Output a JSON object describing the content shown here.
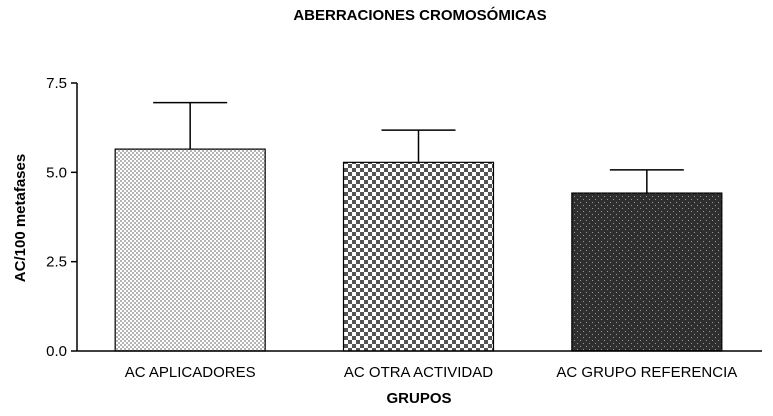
{
  "chart_data": {
    "type": "bar",
    "title": "ABERRACIONES CROMOSÓMICAS",
    "xlabel": "GRUPOS",
    "ylabel": "AC/100 metafases",
    "categories": [
      "AC APLICADORES",
      "AC OTRA ACTIVIDAD",
      "AC GRUPO REFERENCIA"
    ],
    "values": [
      5.65,
      5.28,
      4.42
    ],
    "error_upper": [
      6.95,
      6.18,
      5.07
    ],
    "ylim": [
      0,
      7.5
    ],
    "yticks": [
      "0.0",
      "2.5",
      "5.0",
      "7.5"
    ],
    "ytick_values": [
      0,
      2.5,
      5.0,
      7.5
    ],
    "grid": false,
    "bar_patterns": [
      "fine-light-checker",
      "medium-checker",
      "dark-dotted"
    ]
  }
}
